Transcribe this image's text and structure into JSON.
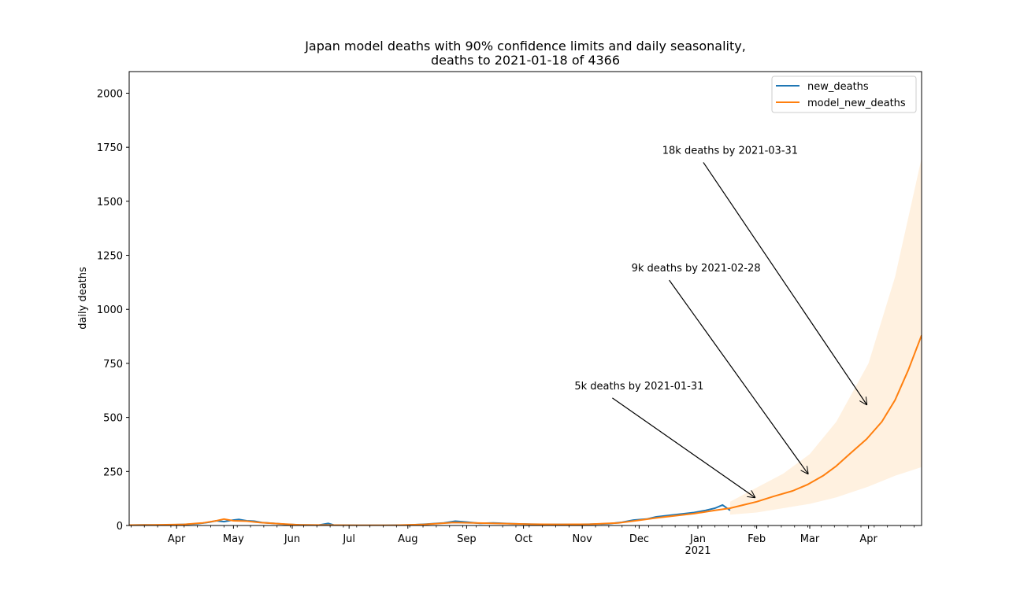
{
  "chart_data": {
    "type": "line",
    "title_line1": "Japan model deaths with 90% confidence limits and daily seasonality,",
    "title_line2": "deaths to 2021-01-18 of 4366",
    "ylabel": "daily deaths",
    "xlabel": "",
    "xlim": [
      "2020-03-07",
      "2021-04-29"
    ],
    "ylim": [
      0,
      2100
    ],
    "yticks": [
      0,
      250,
      500,
      750,
      1000,
      1250,
      1500,
      1750,
      2000
    ],
    "xticks": [
      {
        "date": "2020-04-01",
        "label": "Apr"
      },
      {
        "date": "2020-05-01",
        "label": "May"
      },
      {
        "date": "2020-06-01",
        "label": "Jun"
      },
      {
        "date": "2020-07-01",
        "label": "Jul"
      },
      {
        "date": "2020-08-01",
        "label": "Aug"
      },
      {
        "date": "2020-09-01",
        "label": "Sep"
      },
      {
        "date": "2020-10-01",
        "label": "Oct"
      },
      {
        "date": "2020-11-01",
        "label": "Nov"
      },
      {
        "date": "2020-12-01",
        "label": "Dec"
      },
      {
        "date": "2021-01-01",
        "label": "Jan",
        "sublabel": "2021"
      },
      {
        "date": "2021-02-01",
        "label": "Feb"
      },
      {
        "date": "2021-03-01",
        "label": "Mar"
      },
      {
        "date": "2021-04-01",
        "label": "Apr"
      }
    ],
    "legend": {
      "placement": "top-right"
    },
    "series": [
      {
        "name": "new_deaths",
        "color": "#1f77b4",
        "points": [
          [
            "2020-03-07",
            2
          ],
          [
            "2020-03-15",
            3
          ],
          [
            "2020-03-25",
            2
          ],
          [
            "2020-04-05",
            5
          ],
          [
            "2020-04-12",
            8
          ],
          [
            "2020-04-18",
            15
          ],
          [
            "2020-04-22",
            22
          ],
          [
            "2020-04-26",
            18
          ],
          [
            "2020-04-30",
            24
          ],
          [
            "2020-05-04",
            28
          ],
          [
            "2020-05-08",
            22
          ],
          [
            "2020-05-12",
            20
          ],
          [
            "2020-05-16",
            14
          ],
          [
            "2020-05-22",
            10
          ],
          [
            "2020-05-28",
            6
          ],
          [
            "2020-06-05",
            3
          ],
          [
            "2020-06-15",
            2
          ],
          [
            "2020-06-20",
            10
          ],
          [
            "2020-06-23",
            2
          ],
          [
            "2020-07-05",
            1
          ],
          [
            "2020-07-20",
            1
          ],
          [
            "2020-08-01",
            2
          ],
          [
            "2020-08-10",
            6
          ],
          [
            "2020-08-20",
            12
          ],
          [
            "2020-08-26",
            20
          ],
          [
            "2020-09-01",
            16
          ],
          [
            "2020-09-08",
            10
          ],
          [
            "2020-09-15",
            12
          ],
          [
            "2020-09-25",
            8
          ],
          [
            "2020-10-05",
            6
          ],
          [
            "2020-10-15",
            5
          ],
          [
            "2020-10-25",
            5
          ],
          [
            "2020-11-05",
            6
          ],
          [
            "2020-11-15",
            8
          ],
          [
            "2020-11-22",
            15
          ],
          [
            "2020-11-28",
            25
          ],
          [
            "2020-12-05",
            30
          ],
          [
            "2020-12-10",
            40
          ],
          [
            "2020-12-15",
            45
          ],
          [
            "2020-12-20",
            50
          ],
          [
            "2020-12-25",
            55
          ],
          [
            "2020-12-30",
            60
          ],
          [
            "2021-01-05",
            70
          ],
          [
            "2021-01-10",
            80
          ],
          [
            "2021-01-14",
            95
          ],
          [
            "2021-01-18",
            70
          ]
        ]
      },
      {
        "name": "model_new_deaths",
        "color": "#ff7f0e",
        "points": [
          [
            "2020-03-07",
            2
          ],
          [
            "2020-03-20",
            3
          ],
          [
            "2020-04-05",
            5
          ],
          [
            "2020-04-15",
            12
          ],
          [
            "2020-04-22",
            22
          ],
          [
            "2020-04-26",
            30
          ],
          [
            "2020-05-01",
            22
          ],
          [
            "2020-05-08",
            20
          ],
          [
            "2020-05-15",
            14
          ],
          [
            "2020-05-25",
            8
          ],
          [
            "2020-06-05",
            3
          ],
          [
            "2020-06-20",
            2
          ],
          [
            "2020-07-05",
            1
          ],
          [
            "2020-07-25",
            1
          ],
          [
            "2020-08-10",
            5
          ],
          [
            "2020-08-25",
            14
          ],
          [
            "2020-09-05",
            12
          ],
          [
            "2020-09-20",
            9
          ],
          [
            "2020-10-05",
            6
          ],
          [
            "2020-10-20",
            5
          ],
          [
            "2020-11-05",
            6
          ],
          [
            "2020-11-20",
            12
          ],
          [
            "2020-12-01",
            24
          ],
          [
            "2020-12-10",
            35
          ],
          [
            "2020-12-20",
            45
          ],
          [
            "2020-12-30",
            55
          ],
          [
            "2021-01-10",
            70
          ],
          [
            "2021-01-18",
            80
          ],
          [
            "2021-01-25",
            95
          ],
          [
            "2021-02-01",
            110
          ],
          [
            "2021-02-10",
            135
          ],
          [
            "2021-02-20",
            160
          ],
          [
            "2021-02-28",
            190
          ],
          [
            "2021-03-08",
            230
          ],
          [
            "2021-03-15",
            275
          ],
          [
            "2021-03-22",
            330
          ],
          [
            "2021-03-31",
            400
          ],
          [
            "2021-04-08",
            480
          ],
          [
            "2021-04-15",
            580
          ],
          [
            "2021-04-22",
            720
          ],
          [
            "2021-04-29",
            880
          ]
        ]
      }
    ],
    "confidence_band": {
      "color": "#ffe8cc",
      "points": [
        [
          "2021-01-18",
          50,
          110
        ],
        [
          "2021-02-01",
          60,
          175
        ],
        [
          "2021-02-15",
          80,
          240
        ],
        [
          "2021-03-01",
          100,
          330
        ],
        [
          "2021-03-15",
          130,
          480
        ],
        [
          "2021-04-01",
          180,
          750
        ],
        [
          "2021-04-15",
          230,
          1150
        ],
        [
          "2021-04-29",
          270,
          1700
        ]
      ]
    },
    "annotations": [
      {
        "text": "5k deaths by 2021-01-31",
        "text_x": "2020-12-01",
        "text_y": 630,
        "arrow_x": "2021-01-31",
        "arrow_y": 130
      },
      {
        "text": "9k deaths by 2021-02-28",
        "text_x": "2020-12-31",
        "text_y": 1175,
        "arrow_x": "2021-02-28",
        "arrow_y": 240
      },
      {
        "text": "18k deaths by 2021-03-31",
        "text_x": "2021-01-18",
        "text_y": 1720,
        "arrow_x": "2021-03-31",
        "arrow_y": 560
      }
    ]
  }
}
